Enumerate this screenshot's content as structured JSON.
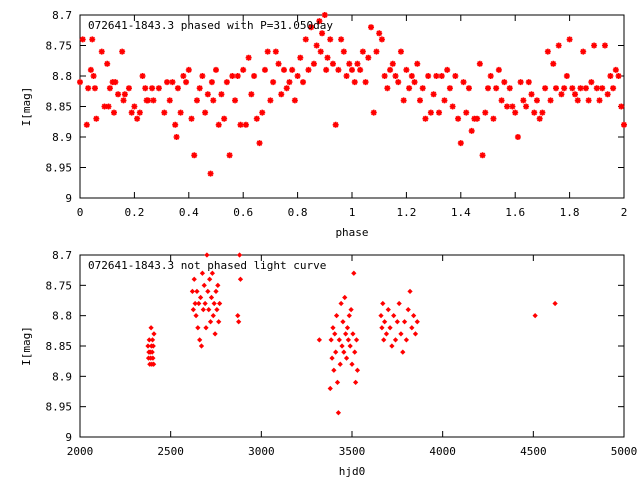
{
  "chart_data": [
    {
      "type": "scatter",
      "title": "072641-1843.3 phased with P=31.050day",
      "xlabel": "phase",
      "ylabel": "I[mag]",
      "xlim": [
        0,
        2
      ],
      "ylim": [
        9,
        8.7
      ],
      "y_inverted": true,
      "xticks": [
        0,
        0.2,
        0.4,
        0.6,
        0.8,
        1,
        1.2,
        1.4,
        1.6,
        1.8,
        2
      ],
      "xtick_labels": [
        "0",
        "0.2",
        "0.4",
        "0.6",
        "0.8",
        "1",
        "1.2",
        "1.4",
        "1.6",
        "1.8",
        "2"
      ],
      "yticks": [
        8.7,
        8.75,
        8.8,
        8.85,
        8.9,
        8.95,
        9
      ],
      "ytick_labels": [
        "8.7",
        "8.75",
        "8.8",
        "8.85",
        "8.9",
        "8.95",
        "9"
      ],
      "marker_color": "#ff0000",
      "marker": "cross",
      "points": [
        [
          0.0,
          8.81
        ],
        [
          0.01,
          8.74
        ],
        [
          0.025,
          8.88
        ],
        [
          0.03,
          8.82
        ],
        [
          0.04,
          8.79
        ],
        [
          0.045,
          8.74
        ],
        [
          0.05,
          8.8
        ],
        [
          0.055,
          8.82
        ],
        [
          0.06,
          8.87
        ],
        [
          0.08,
          8.76
        ],
        [
          0.09,
          8.85
        ],
        [
          0.1,
          8.78
        ],
        [
          0.105,
          8.85
        ],
        [
          0.11,
          8.82
        ],
        [
          0.12,
          8.81
        ],
        [
          0.125,
          8.86
        ],
        [
          0.13,
          8.81
        ],
        [
          0.14,
          8.83
        ],
        [
          0.155,
          8.76
        ],
        [
          0.16,
          8.84
        ],
        [
          0.165,
          8.83
        ],
        [
          0.18,
          8.82
        ],
        [
          0.19,
          8.86
        ],
        [
          0.2,
          8.85
        ],
        [
          0.21,
          8.87
        ],
        [
          0.22,
          8.86
        ],
        [
          0.23,
          8.8
        ],
        [
          0.24,
          8.82
        ],
        [
          0.245,
          8.84
        ],
        [
          0.25,
          8.84
        ],
        [
          0.265,
          8.82
        ],
        [
          0.27,
          8.84
        ],
        [
          0.29,
          8.82
        ],
        [
          0.31,
          8.86
        ],
        [
          0.32,
          8.81
        ],
        [
          0.33,
          8.84
        ],
        [
          0.34,
          8.81
        ],
        [
          0.35,
          8.88
        ],
        [
          0.355,
          8.9
        ],
        [
          0.36,
          8.82
        ],
        [
          0.37,
          8.86
        ],
        [
          0.38,
          8.8
        ],
        [
          0.39,
          8.81
        ],
        [
          0.4,
          8.79
        ],
        [
          0.41,
          8.87
        ],
        [
          0.42,
          8.93
        ],
        [
          0.43,
          8.84
        ],
        [
          0.44,
          8.82
        ],
        [
          0.45,
          8.8
        ],
        [
          0.46,
          8.86
        ],
        [
          0.47,
          8.83
        ],
        [
          0.48,
          8.96
        ],
        [
          0.485,
          8.81
        ],
        [
          0.49,
          8.84
        ],
        [
          0.5,
          8.79
        ],
        [
          0.51,
          8.88
        ],
        [
          0.52,
          8.83
        ],
        [
          0.53,
          8.87
        ],
        [
          0.54,
          8.81
        ],
        [
          0.55,
          8.93
        ],
        [
          0.56,
          8.8
        ],
        [
          0.57,
          8.84
        ],
        [
          0.58,
          8.8
        ],
        [
          0.59,
          8.88
        ],
        [
          0.6,
          8.79
        ],
        [
          0.61,
          8.88
        ],
        [
          0.62,
          8.77
        ],
        [
          0.63,
          8.83
        ],
        [
          0.64,
          8.8
        ],
        [
          0.65,
          8.87
        ],
        [
          0.66,
          8.91
        ],
        [
          0.67,
          8.86
        ],
        [
          0.68,
          8.79
        ],
        [
          0.69,
          8.76
        ],
        [
          0.7,
          8.84
        ],
        [
          0.71,
          8.81
        ],
        [
          0.72,
          8.76
        ],
        [
          0.73,
          8.78
        ],
        [
          0.74,
          8.83
        ],
        [
          0.75,
          8.79
        ],
        [
          0.76,
          8.82
        ],
        [
          0.77,
          8.81
        ],
        [
          0.78,
          8.79
        ],
        [
          0.79,
          8.84
        ],
        [
          0.8,
          8.8
        ],
        [
          0.81,
          8.77
        ],
        [
          0.82,
          8.81
        ],
        [
          0.83,
          8.74
        ],
        [
          0.84,
          8.79
        ],
        [
          0.85,
          8.72
        ],
        [
          0.86,
          8.78
        ],
        [
          0.87,
          8.75
        ],
        [
          0.88,
          8.71
        ],
        [
          0.885,
          8.76
        ],
        [
          0.89,
          8.73
        ],
        [
          0.9,
          8.7
        ],
        [
          0.905,
          8.79
        ],
        [
          0.91,
          8.77
        ],
        [
          0.92,
          8.74
        ],
        [
          0.93,
          8.78
        ],
        [
          0.94,
          8.88
        ],
        [
          0.95,
          8.79
        ],
        [
          0.96,
          8.74
        ],
        [
          0.97,
          8.76
        ],
        [
          0.98,
          8.8
        ],
        [
          0.99,
          8.78
        ],
        [
          1.0,
          8.79
        ],
        [
          1.01,
          8.81
        ],
        [
          1.02,
          8.78
        ],
        [
          1.03,
          8.79
        ],
        [
          1.04,
          8.76
        ],
        [
          1.05,
          8.81
        ],
        [
          1.06,
          8.77
        ],
        [
          1.07,
          8.72
        ],
        [
          1.08,
          8.86
        ],
        [
          1.09,
          8.76
        ],
        [
          1.1,
          8.73
        ],
        [
          1.11,
          8.74
        ],
        [
          1.12,
          8.8
        ],
        [
          1.13,
          8.82
        ],
        [
          1.14,
          8.79
        ],
        [
          1.15,
          8.78
        ],
        [
          1.16,
          8.8
        ],
        [
          1.17,
          8.81
        ],
        [
          1.18,
          8.76
        ],
        [
          1.19,
          8.84
        ],
        [
          1.2,
          8.79
        ],
        [
          1.21,
          8.82
        ],
        [
          1.22,
          8.8
        ],
        [
          1.23,
          8.81
        ],
        [
          1.24,
          8.78
        ],
        [
          1.25,
          8.84
        ],
        [
          1.26,
          8.82
        ],
        [
          1.27,
          8.87
        ],
        [
          1.28,
          8.8
        ],
        [
          1.29,
          8.86
        ],
        [
          1.3,
          8.83
        ],
        [
          1.31,
          8.8
        ],
        [
          1.32,
          8.86
        ],
        [
          1.33,
          8.8
        ],
        [
          1.34,
          8.84
        ],
        [
          1.35,
          8.79
        ],
        [
          1.36,
          8.82
        ],
        [
          1.37,
          8.85
        ],
        [
          1.38,
          8.8
        ],
        [
          1.39,
          8.87
        ],
        [
          1.4,
          8.91
        ],
        [
          1.41,
          8.81
        ],
        [
          1.42,
          8.86
        ],
        [
          1.43,
          8.82
        ],
        [
          1.44,
          8.89
        ],
        [
          1.45,
          8.87
        ],
        [
          1.46,
          8.87
        ],
        [
          1.47,
          8.78
        ],
        [
          1.48,
          8.93
        ],
        [
          1.49,
          8.86
        ],
        [
          1.5,
          8.82
        ],
        [
          1.51,
          8.8
        ],
        [
          1.52,
          8.87
        ],
        [
          1.53,
          8.82
        ],
        [
          1.54,
          8.79
        ],
        [
          1.55,
          8.84
        ],
        [
          1.56,
          8.81
        ],
        [
          1.57,
          8.85
        ],
        [
          1.58,
          8.82
        ],
        [
          1.59,
          8.85
        ],
        [
          1.6,
          8.86
        ],
        [
          1.61,
          8.9
        ],
        [
          1.62,
          8.81
        ],
        [
          1.63,
          8.84
        ],
        [
          1.64,
          8.85
        ],
        [
          1.65,
          8.81
        ],
        [
          1.66,
          8.83
        ],
        [
          1.67,
          8.86
        ],
        [
          1.68,
          8.84
        ],
        [
          1.69,
          8.87
        ],
        [
          1.7,
          8.86
        ],
        [
          1.71,
          8.82
        ],
        [
          1.72,
          8.76
        ],
        [
          1.73,
          8.84
        ],
        [
          1.74,
          8.78
        ],
        [
          1.75,
          8.82
        ],
        [
          1.76,
          8.75
        ],
        [
          1.77,
          8.83
        ],
        [
          1.78,
          8.82
        ],
        [
          1.79,
          8.8
        ],
        [
          1.8,
          8.74
        ],
        [
          1.81,
          8.82
        ],
        [
          1.82,
          8.83
        ],
        [
          1.83,
          8.84
        ],
        [
          1.84,
          8.82
        ],
        [
          1.85,
          8.76
        ],
        [
          1.86,
          8.82
        ],
        [
          1.87,
          8.84
        ],
        [
          1.88,
          8.81
        ],
        [
          1.89,
          8.75
        ],
        [
          1.9,
          8.82
        ],
        [
          1.91,
          8.84
        ],
        [
          1.92,
          8.82
        ],
        [
          1.93,
          8.75
        ],
        [
          1.94,
          8.83
        ],
        [
          1.95,
          8.8
        ],
        [
          1.96,
          8.82
        ],
        [
          1.97,
          8.79
        ],
        [
          1.98,
          8.8
        ],
        [
          1.99,
          8.85
        ],
        [
          2.0,
          8.88
        ]
      ]
    },
    {
      "type": "scatter",
      "title": "072641-1843.3 not phased light curve",
      "xlabel": "hjd0",
      "ylabel": "I[mag]",
      "xlim": [
        2000,
        5000
      ],
      "ylim": [
        9,
        8.7
      ],
      "y_inverted": true,
      "xticks": [
        2000,
        2500,
        3000,
        3500,
        4000,
        4500,
        5000
      ],
      "xtick_labels": [
        "2000",
        "2500",
        "3000",
        "3500",
        "4000",
        "4500",
        "5000"
      ],
      "yticks": [
        8.7,
        8.75,
        8.8,
        8.85,
        8.9,
        8.95,
        9
      ],
      "ytick_labels": [
        "8.7",
        "8.75",
        "8.8",
        "8.85",
        "8.9",
        "8.95",
        "9"
      ],
      "marker_color": "#ff0000",
      "marker": "diamond",
      "points": [
        [
          2375,
          8.85
        ],
        [
          2378,
          8.87
        ],
        [
          2380,
          8.86
        ],
        [
          2382,
          8.84
        ],
        [
          2385,
          8.88
        ],
        [
          2387,
          8.86
        ],
        [
          2390,
          8.87
        ],
        [
          2392,
          8.82
        ],
        [
          2394,
          8.85
        ],
        [
          2396,
          8.88
        ],
        [
          2398,
          8.86
        ],
        [
          2400,
          8.84
        ],
        [
          2402,
          8.87
        ],
        [
          2404,
          8.85
        ],
        [
          2406,
          8.88
        ],
        [
          2408,
          8.83
        ],
        [
          2620,
          8.76
        ],
        [
          2625,
          8.79
        ],
        [
          2630,
          8.74
        ],
        [
          2635,
          8.78
        ],
        [
          2640,
          8.8
        ],
        [
          2645,
          8.76
        ],
        [
          2650,
          8.82
        ],
        [
          2655,
          8.78
        ],
        [
          2660,
          8.84
        ],
        [
          2665,
          8.77
        ],
        [
          2670,
          8.85
        ],
        [
          2675,
          8.73
        ],
        [
          2680,
          8.79
        ],
        [
          2685,
          8.75
        ],
        [
          2690,
          8.78
        ],
        [
          2695,
          8.82
        ],
        [
          2700,
          8.7
        ],
        [
          2705,
          8.76
        ],
        [
          2710,
          8.79
        ],
        [
          2715,
          8.74
        ],
        [
          2720,
          8.81
        ],
        [
          2725,
          8.77
        ],
        [
          2730,
          8.73
        ],
        [
          2735,
          8.8
        ],
        [
          2740,
          8.78
        ],
        [
          2745,
          8.83
        ],
        [
          2750,
          8.76
        ],
        [
          2755,
          8.79
        ],
        [
          2760,
          8.75
        ],
        [
          2765,
          8.81
        ],
        [
          2770,
          8.78
        ],
        [
          2870,
          8.8
        ],
        [
          2875,
          8.81
        ],
        [
          2880,
          8.7
        ],
        [
          2885,
          8.74
        ],
        [
          3320,
          8.84
        ],
        [
          3380,
          8.92
        ],
        [
          3385,
          8.84
        ],
        [
          3390,
          8.87
        ],
        [
          3395,
          8.82
        ],
        [
          3400,
          8.89
        ],
        [
          3405,
          8.83
        ],
        [
          3410,
          8.86
        ],
        [
          3415,
          8.8
        ],
        [
          3420,
          8.91
        ],
        [
          3425,
          8.96
        ],
        [
          3430,
          8.84
        ],
        [
          3435,
          8.88
        ],
        [
          3440,
          8.78
        ],
        [
          3445,
          8.85
        ],
        [
          3450,
          8.81
        ],
        [
          3455,
          8.86
        ],
        [
          3460,
          8.77
        ],
        [
          3465,
          8.83
        ],
        [
          3470,
          8.87
        ],
        [
          3475,
          8.82
        ],
        [
          3480,
          8.84
        ],
        [
          3485,
          8.8
        ],
        [
          3490,
          8.85
        ],
        [
          3495,
          8.79
        ],
        [
          3500,
          8.88
        ],
        [
          3505,
          8.83
        ],
        [
          3510,
          8.73
        ],
        [
          3515,
          8.86
        ],
        [
          3520,
          8.91
        ],
        [
          3525,
          8.84
        ],
        [
          3530,
          8.89
        ],
        [
          3660,
          8.8
        ],
        [
          3665,
          8.82
        ],
        [
          3670,
          8.78
        ],
        [
          3675,
          8.84
        ],
        [
          3680,
          8.81
        ],
        [
          3690,
          8.83
        ],
        [
          3700,
          8.79
        ],
        [
          3710,
          8.82
        ],
        [
          3720,
          8.85
        ],
        [
          3730,
          8.8
        ],
        [
          3740,
          8.84
        ],
        [
          3750,
          8.81
        ],
        [
          3760,
          8.78
        ],
        [
          3770,
          8.83
        ],
        [
          3780,
          8.86
        ],
        [
          3790,
          8.81
        ],
        [
          3800,
          8.84
        ],
        [
          3810,
          8.79
        ],
        [
          3820,
          8.76
        ],
        [
          3830,
          8.82
        ],
        [
          3840,
          8.8
        ],
        [
          3850,
          8.83
        ],
        [
          3860,
          8.81
        ],
        [
          4510,
          8.8
        ],
        [
          4620,
          8.78
        ]
      ]
    }
  ]
}
